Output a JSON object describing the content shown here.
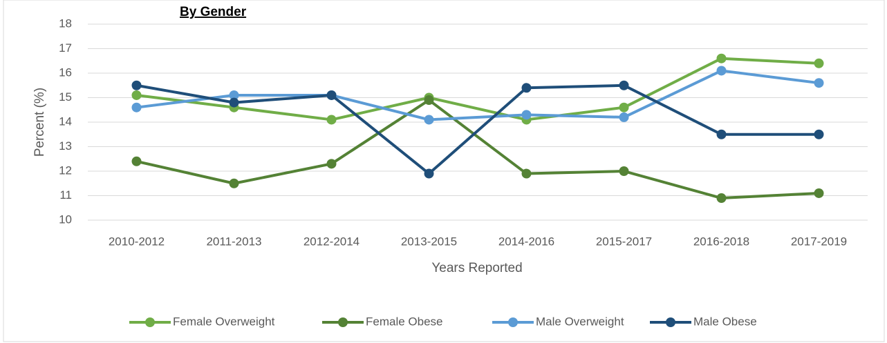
{
  "chart_data": {
    "type": "line",
    "title": "By Gender",
    "x_label": "Years Reported",
    "y_label": "Percent (%)",
    "categories": [
      "2010-2012",
      "2011-2013",
      "2012-2014",
      "2013-2015",
      "2014-2016",
      "2015-2017",
      "2016-2018",
      "2017-2019"
    ],
    "series": [
      {
        "name": "Female Overweight",
        "color": "#70ad47",
        "values": [
          15.1,
          14.6,
          14.1,
          15.0,
          14.1,
          14.6,
          16.6,
          16.4
        ]
      },
      {
        "name": "Female Obese",
        "color": "#548235",
        "values": [
          12.4,
          11.5,
          12.3,
          14.9,
          11.9,
          12.0,
          10.9,
          11.1
        ]
      },
      {
        "name": "Male Overweight",
        "color": "#5b9bd5",
        "values": [
          14.6,
          15.1,
          15.1,
          14.1,
          14.3,
          14.2,
          16.1,
          15.6
        ]
      },
      {
        "name": "Male Obese",
        "color": "#1f4e79",
        "values": [
          15.5,
          14.8,
          15.1,
          11.9,
          15.4,
          15.5,
          13.5,
          13.5
        ]
      }
    ],
    "ylim": [
      10,
      18
    ],
    "yticks": [
      10,
      11,
      12,
      13,
      14,
      15,
      16,
      17,
      18
    ],
    "grid": true,
    "legend": "bottom"
  }
}
